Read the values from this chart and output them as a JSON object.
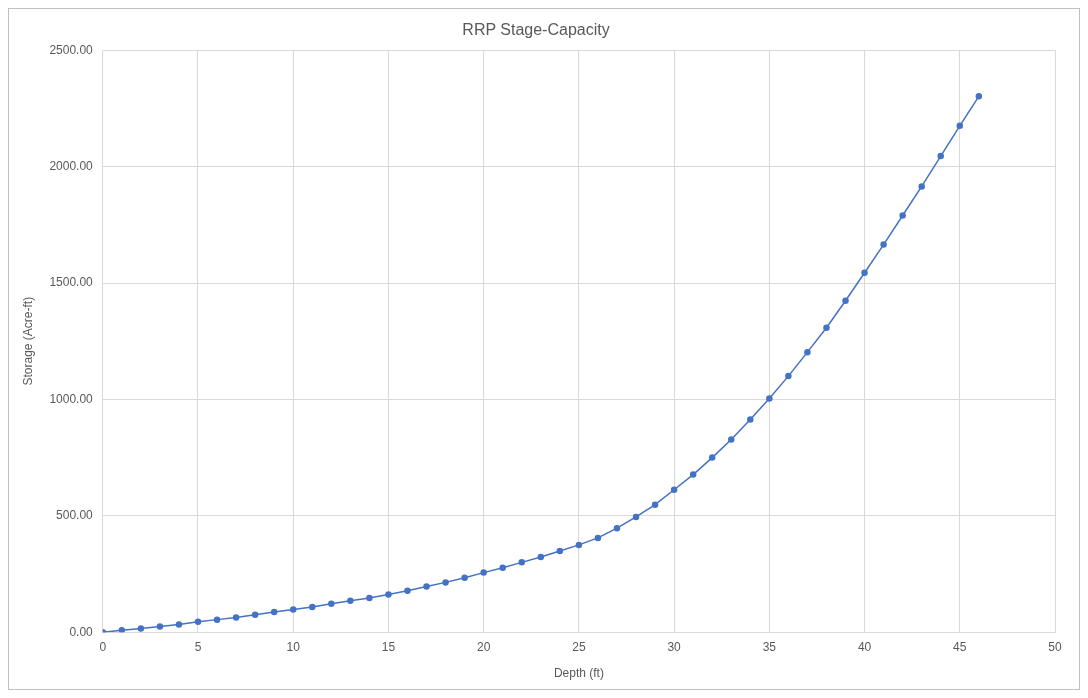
{
  "chart_data": {
    "type": "line",
    "title": "RRP Stage-Capacity",
    "xlabel": "Depth (ft)",
    "ylabel": "Storage (Acre-ft)",
    "x": [
      0,
      1,
      2,
      3,
      4,
      5,
      6,
      7,
      8,
      9,
      10,
      11,
      12,
      13,
      14,
      15,
      16,
      17,
      18,
      19,
      20,
      21,
      22,
      23,
      24,
      25,
      26,
      27,
      28,
      29,
      30,
      31,
      32,
      33,
      34,
      35,
      36,
      37,
      38,
      39,
      40,
      41,
      42,
      43,
      44,
      45,
      46
    ],
    "series": [
      {
        "color": "#4472c4",
        "values": [
          0,
          8,
          16,
          24,
          33,
          45,
          54,
          63,
          75,
          87,
          97,
          108,
          122,
          135,
          147,
          162,
          178,
          196,
          214,
          234,
          256,
          277,
          300,
          323,
          349,
          375,
          405,
          447,
          495,
          548,
          612,
          677,
          750,
          828,
          914,
          1004,
          1100,
          1203,
          1308,
          1424,
          1544,
          1665,
          1790,
          1915,
          2045,
          2175,
          2302
        ]
      }
    ],
    "xlim": [
      0,
      50
    ],
    "xticks": [
      0,
      5,
      10,
      15,
      20,
      25,
      30,
      35,
      40,
      45,
      50
    ],
    "ylim": [
      0,
      2500
    ],
    "yticks": [
      {
        "value": 0,
        "label": "0.00"
      },
      {
        "value": 500,
        "label": "500.00"
      },
      {
        "value": 1000,
        "label": "1000.00"
      },
      {
        "value": 1500,
        "label": "1500.00"
      },
      {
        "value": 2000,
        "label": "2000.00"
      },
      {
        "value": 2500,
        "label": "2500.00"
      }
    ],
    "grid": true,
    "marker": "circle",
    "line_style": "solid"
  }
}
